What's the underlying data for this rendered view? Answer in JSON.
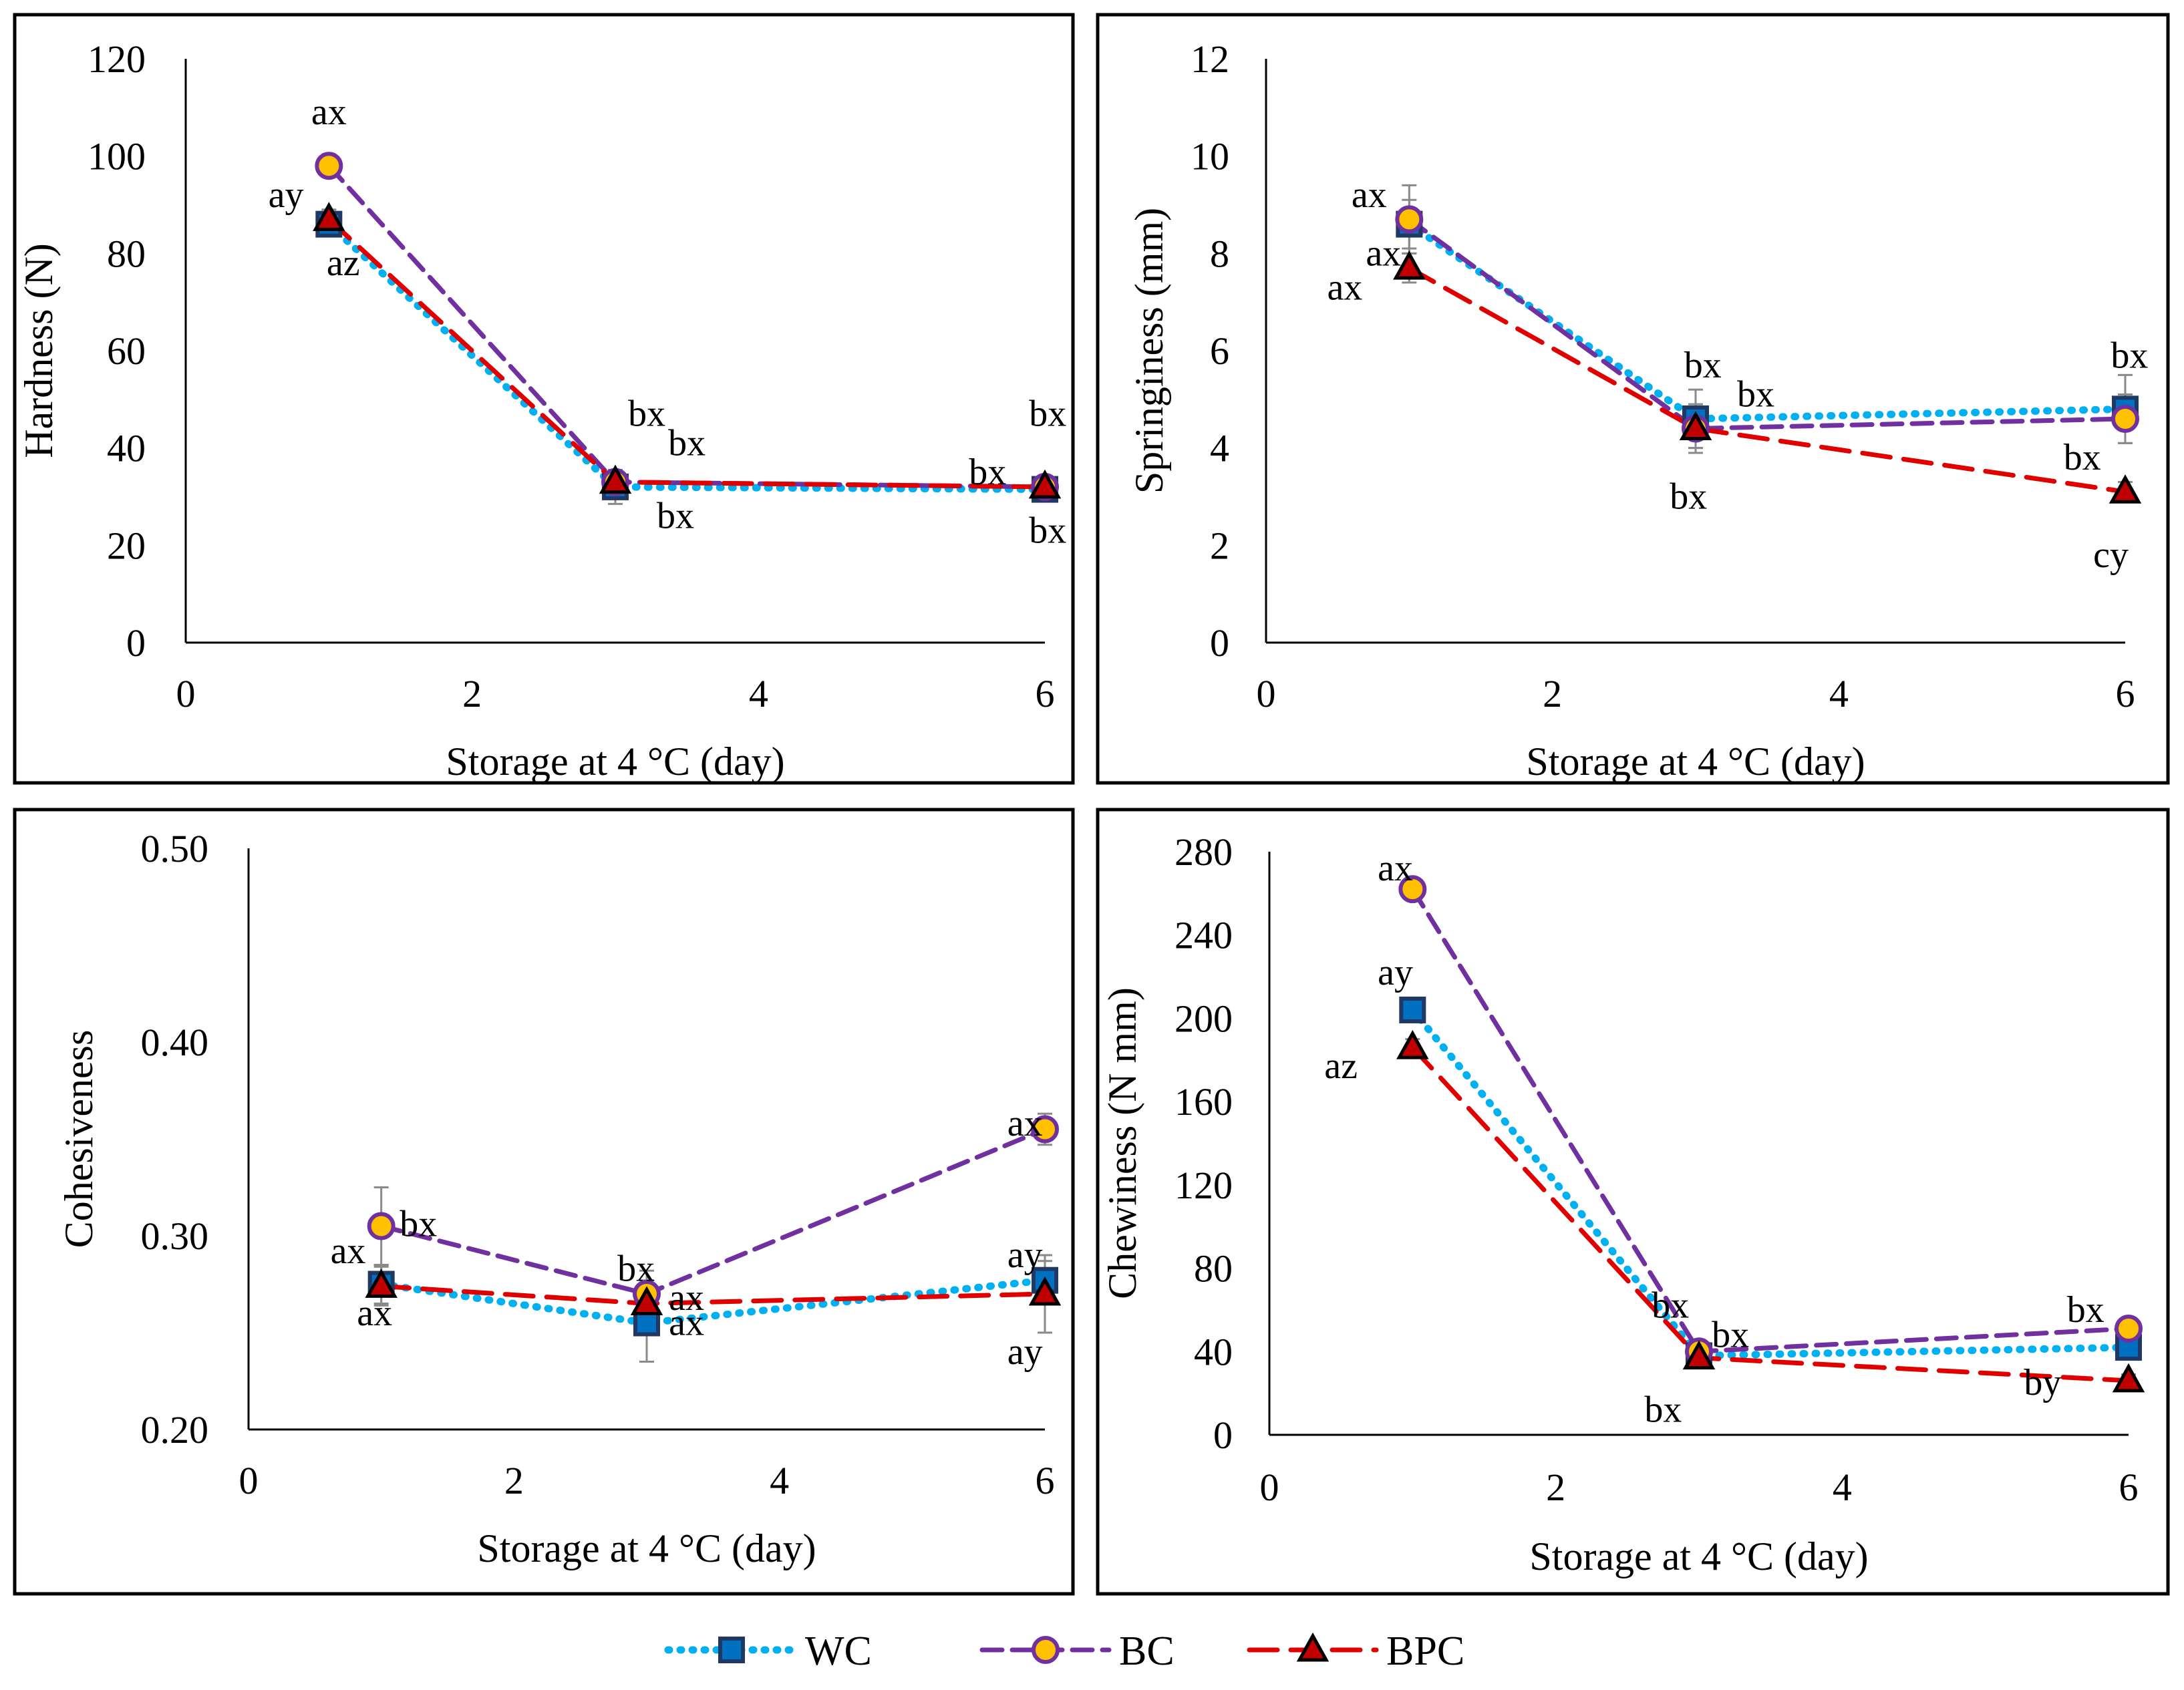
{
  "series_meta": [
    {
      "name": "WC",
      "line_color": "#00B0F0",
      "marker_fill": "#0070C0",
      "marker_stroke": "#1F3864",
      "marker": "square",
      "dash": "dot"
    },
    {
      "name": "BC",
      "line_color": "#7030A0",
      "marker_fill": "#FFC000",
      "marker_stroke": "#7030A0",
      "marker": "circle",
      "dash": "dash"
    },
    {
      "name": "BPC",
      "line_color": "#E00000",
      "marker_fill": "#C00000",
      "marker_stroke": "#000000",
      "marker": "triangle",
      "dash": "longdash"
    }
  ],
  "legend": {
    "items": [
      "WC",
      "BC",
      "BPC"
    ]
  },
  "chart_data": [
    {
      "type": "line",
      "xlabel": "Storage at 4 °C (day)",
      "ylabel": "Hardness (N)",
      "xlim": [
        0,
        6
      ],
      "xticks": [
        0,
        2,
        4,
        6
      ],
      "xtick_labels": [
        "0",
        "2",
        "4",
        "6"
      ],
      "ylim": [
        0,
        120
      ],
      "yticks": [
        0,
        20,
        40,
        60,
        80,
        100,
        120
      ],
      "ytick_labels": [
        "0",
        "20",
        "40",
        "60",
        "80",
        "100",
        "120"
      ],
      "x": [
        1,
        3,
        6
      ],
      "series": [
        {
          "name": "WC",
          "values": [
            86,
            32,
            31.5
          ],
          "errors": [
            2,
            3.5,
            1.5
          ]
        },
        {
          "name": "BC",
          "values": [
            98,
            33,
            32
          ],
          "errors": [
            1.5,
            2,
            1.5
          ]
        },
        {
          "name": "BPC",
          "values": [
            87,
            33,
            32
          ],
          "errors": [
            2,
            2,
            1.5
          ]
        }
      ],
      "annotations": [
        {
          "text": "ax",
          "x": 1,
          "y": 109
        },
        {
          "text": "ay",
          "x": 0.7,
          "y": 92
        },
        {
          "text": "az",
          "x": 1.1,
          "y": 78
        },
        {
          "text": "bx",
          "x": 3.22,
          "y": 47
        },
        {
          "text": "bx",
          "x": 3.5,
          "y": 41
        },
        {
          "text": "bx",
          "x": 3.42,
          "y": 26
        },
        {
          "text": "bx",
          "x": 5.6,
          "y": 35
        },
        {
          "text": "bx",
          "x": 6.02,
          "y": 47
        },
        {
          "text": "bx",
          "x": 6.02,
          "y": 23
        }
      ]
    },
    {
      "type": "line",
      "xlabel": "Storage at 4 °C (day)",
      "ylabel": "Springiness (mm)",
      "xlim": [
        0,
        6
      ],
      "xticks": [
        0,
        2,
        4,
        6
      ],
      "xtick_labels": [
        "0",
        "2",
        "4",
        "6"
      ],
      "ylim": [
        0,
        12
      ],
      "yticks": [
        0,
        2,
        4,
        6,
        8,
        10,
        12
      ],
      "ytick_labels": [
        "0",
        "2",
        "4",
        "6",
        "8",
        "10",
        "12"
      ],
      "x": [
        1,
        3,
        6
      ],
      "series": [
        {
          "name": "WC",
          "values": [
            8.6,
            4.6,
            4.8
          ],
          "errors": [
            0.5,
            0.6,
            0.7
          ]
        },
        {
          "name": "BC",
          "values": [
            8.7,
            4.4,
            4.6
          ],
          "errors": [
            0.7,
            0.5,
            0.5
          ]
        },
        {
          "name": "BPC",
          "values": [
            7.7,
            4.4,
            3.1
          ],
          "errors": [
            0.3,
            0.4,
            0.2
          ]
        }
      ],
      "annotations": [
        {
          "text": "ax",
          "x": 0.72,
          "y": 9.2
        },
        {
          "text": "ax",
          "x": 0.82,
          "y": 8.0
        },
        {
          "text": "ax",
          "x": 0.55,
          "y": 7.3
        },
        {
          "text": "bx",
          "x": 3.05,
          "y": 5.7
        },
        {
          "text": "bx",
          "x": 3.42,
          "y": 5.1
        },
        {
          "text": "bx",
          "x": 2.95,
          "y": 3.0
        },
        {
          "text": "bx",
          "x": 6.03,
          "y": 5.9
        },
        {
          "text": "bx",
          "x": 5.7,
          "y": 3.8
        },
        {
          "text": "cy",
          "x": 5.9,
          "y": 1.8
        }
      ]
    },
    {
      "type": "line",
      "xlabel": "Storage at 4 °C (day)",
      "ylabel": "Cohesiveness",
      "xlim": [
        0,
        6
      ],
      "xticks": [
        0,
        2,
        4,
        6
      ],
      "xtick_labels": [
        "0",
        "2",
        "4",
        "6"
      ],
      "ylim": [
        0.2,
        0.5
      ],
      "yticks": [
        0.2,
        0.3,
        0.4,
        0.5
      ],
      "ytick_labels": [
        "0.20",
        "0.30",
        "0.40",
        "0.50"
      ],
      "x": [
        1,
        3,
        6
      ],
      "series": [
        {
          "name": "WC",
          "values": [
            0.275,
            0.255,
            0.277
          ],
          "errors": [
            0.01,
            0.02,
            0.01
          ]
        },
        {
          "name": "BC",
          "values": [
            0.305,
            0.27,
            0.355
          ],
          "errors": [
            0.02,
            0.012,
            0.008
          ]
        },
        {
          "name": "BPC",
          "values": [
            0.274,
            0.265,
            0.27
          ],
          "errors": [
            0.01,
            0.012,
            0.02
          ]
        }
      ],
      "annotations": [
        {
          "text": "bx",
          "x": 1.28,
          "y": 0.306
        },
        {
          "text": "ax",
          "x": 0.75,
          "y": 0.292
        },
        {
          "text": "ax",
          "x": 0.95,
          "y": 0.26
        },
        {
          "text": "bx",
          "x": 2.92,
          "y": 0.283
        },
        {
          "text": "ax",
          "x": 3.3,
          "y": 0.268
        },
        {
          "text": "ax",
          "x": 3.3,
          "y": 0.255
        },
        {
          "text": "ax",
          "x": 5.85,
          "y": 0.358
        },
        {
          "text": "ay",
          "x": 5.85,
          "y": 0.29
        },
        {
          "text": "ay",
          "x": 5.85,
          "y": 0.24
        }
      ]
    },
    {
      "type": "line",
      "xlabel": "Storage at 4 °C (day)",
      "ylabel": "Chewiness (N mm)",
      "xlim": [
        0,
        6
      ],
      "xticks": [
        0,
        2,
        4,
        6
      ],
      "xtick_labels": [
        "0",
        "2",
        "4",
        "6"
      ],
      "ylim": [
        0,
        280
      ],
      "yticks": [
        0,
        40,
        80,
        120,
        160,
        200,
        240,
        280
      ],
      "ytick_labels": [
        "0",
        "40",
        "80",
        "120",
        "160",
        "200",
        "240",
        "280"
      ],
      "x": [
        1,
        3,
        6
      ],
      "series": [
        {
          "name": "WC",
          "values": [
            204,
            38,
            42
          ],
          "errors": [
            4,
            4,
            4
          ]
        },
        {
          "name": "BC",
          "values": [
            262,
            40,
            51
          ],
          "errors": [
            4,
            4,
            4
          ]
        },
        {
          "name": "BPC",
          "values": [
            186,
            37,
            26
          ],
          "errors": [
            4,
            4,
            3
          ]
        }
      ],
      "annotations": [
        {
          "text": "ax",
          "x": 0.88,
          "y": 272
        },
        {
          "text": "ay",
          "x": 0.88,
          "y": 222
        },
        {
          "text": "az",
          "x": 0.5,
          "y": 177
        },
        {
          "text": "bx",
          "x": 2.8,
          "y": 62
        },
        {
          "text": "bx",
          "x": 3.22,
          "y": 48
        },
        {
          "text": "bx",
          "x": 2.75,
          "y": 12
        },
        {
          "text": "bx",
          "x": 5.7,
          "y": 60
        },
        {
          "text": "by",
          "x": 5.4,
          "y": 25
        }
      ]
    }
  ]
}
